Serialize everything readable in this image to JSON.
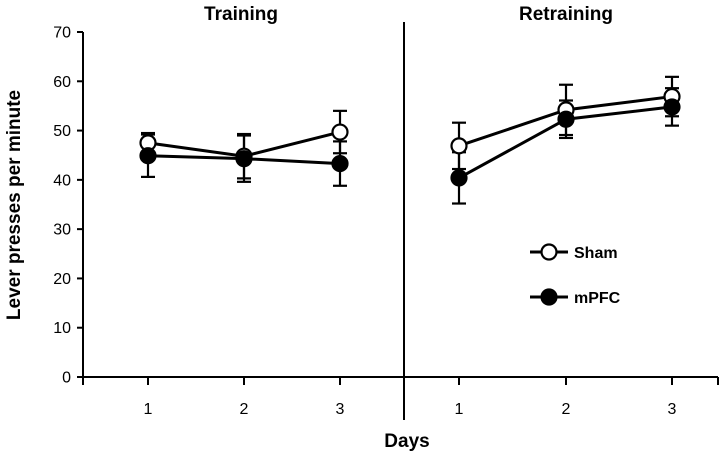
{
  "chart_data": {
    "type": "line",
    "ylabel": "Lever presses per minute",
    "xlabel": "Days",
    "ylim": [
      0,
      70
    ],
    "yticks": [
      0,
      10,
      20,
      30,
      40,
      50,
      60,
      70
    ],
    "grid": false,
    "legend_position": "right",
    "panels": [
      {
        "title": "Training",
        "x": [
          "1",
          "2",
          "3"
        ],
        "series": [
          {
            "name": "Sham",
            "marker": "open-circle",
            "values": [
              47.5,
              44.8,
              49.7
            ],
            "errors": [
              2.0,
              4.5,
              4.3
            ]
          },
          {
            "name": "mPFC",
            "marker": "filled-circle",
            "values": [
              44.9,
              44.3,
              43.3
            ],
            "errors": [
              4.3,
              4.7,
              4.5
            ]
          }
        ]
      },
      {
        "title": "Retraining",
        "x": [
          "1",
          "2",
          "3"
        ],
        "series": [
          {
            "name": "Sham",
            "marker": "open-circle",
            "values": [
              46.9,
              54.2,
              56.9
            ],
            "errors": [
              4.7,
              5.1,
              4.0
            ]
          },
          {
            "name": "mPFC",
            "marker": "filled-circle",
            "values": [
              40.4,
              52.3,
              54.8
            ],
            "errors": [
              5.2,
              3.8,
              3.8
            ]
          }
        ]
      }
    ],
    "legend": [
      {
        "label": "Sham",
        "marker": "open-circle"
      },
      {
        "label": "mPFC",
        "marker": "filled-circle"
      }
    ]
  }
}
